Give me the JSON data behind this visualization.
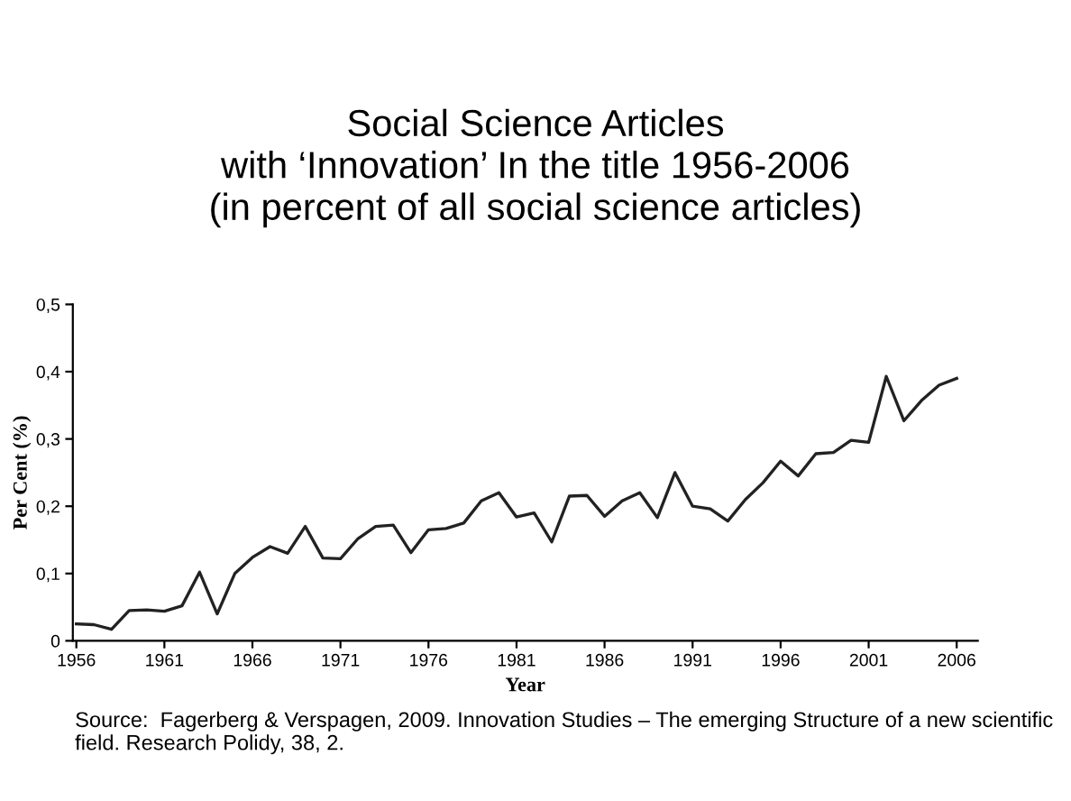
{
  "chart_data": {
    "type": "line",
    "title": "Social Science Articles\nwith ‘Innovation’ In the title 1956-2006\n(in percent of all social science articles)",
    "xlabel": "Year",
    "ylabel": "Per Cent (%)",
    "x": [
      1956,
      1957,
      1958,
      1959,
      1960,
      1961,
      1962,
      1963,
      1964,
      1965,
      1966,
      1967,
      1968,
      1969,
      1970,
      1971,
      1972,
      1973,
      1974,
      1975,
      1976,
      1977,
      1978,
      1979,
      1980,
      1981,
      1982,
      1983,
      1984,
      1985,
      1986,
      1987,
      1988,
      1989,
      1990,
      1991,
      1992,
      1993,
      1994,
      1995,
      1996,
      1997,
      1998,
      1999,
      2000,
      2001,
      2002,
      2003,
      2004,
      2005,
      2006
    ],
    "series": [
      {
        "color": "#222222",
        "values": [
          0.025,
          0.024,
          0.017,
          0.045,
          0.046,
          0.044,
          0.052,
          0.102,
          0.04,
          0.1,
          0.124,
          0.14,
          0.13,
          0.17,
          0.123,
          0.122,
          0.152,
          0.17,
          0.172,
          0.131,
          0.165,
          0.167,
          0.175,
          0.208,
          0.22,
          0.184,
          0.19,
          0.147,
          0.215,
          0.216,
          0.185,
          0.208,
          0.22,
          0.183,
          0.25,
          0.2,
          0.196,
          0.178,
          0.21,
          0.235,
          0.267,
          0.245,
          0.278,
          0.28,
          0.298,
          0.295,
          0.393,
          0.327,
          0.357,
          0.38,
          0.39
        ]
      }
    ],
    "xlim": [
      1955.8,
      2007.2
    ],
    "xticks": [
      1956,
      1961,
      1966,
      1971,
      1976,
      1981,
      1986,
      1991,
      1996,
      2001,
      2006
    ],
    "ylim": [
      0,
      0.5
    ],
    "yticks": [
      {
        "value": 0,
        "label": "0"
      },
      {
        "value": 0.1,
        "label": "0,1"
      },
      {
        "value": 0.2,
        "label": "0,2"
      },
      {
        "value": 0.3,
        "label": "0,3"
      },
      {
        "value": 0.4,
        "label": "0,4"
      },
      {
        "value": 0.5,
        "label": "0,5"
      }
    ],
    "grid": false,
    "legend": false,
    "marker": "none",
    "line_style": "solid",
    "annotations": [
      "Source:  Fagerberg & Verspagen, 2009. Innovation Studies – The emerging Structure of a new scientific field. Research Polidy, 38, 2."
    ]
  }
}
